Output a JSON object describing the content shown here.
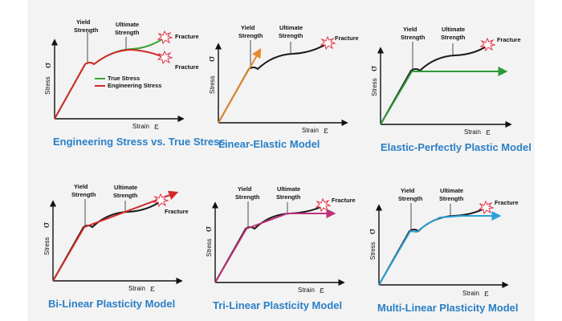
{
  "common": {
    "stress_label": "Stress",
    "sigma": "σ",
    "strain_label": "Strain",
    "epsilon": "ε",
    "yield_line1": "Yield",
    "yield_line2": "Strength",
    "ultimate_line1": "Ultimate",
    "ultimate_line2": "Strength",
    "fracture": "Fracture"
  },
  "colors": {
    "title": "#2a7fc6",
    "true_stress": "#3aa635",
    "engineering_stress": "#d12a2a",
    "curve_black": "#1a1a1a",
    "linear_elastic": "#e88a2a",
    "elastic_plastic": "#2e9a3a",
    "bilinear": "#d42a2a",
    "trilinear": "#c0307a",
    "multilinear": "#2aa0d8",
    "fracture_star": "#e23040"
  },
  "panels": [
    {
      "title": "Engineering Stress vs. True Stress",
      "legend": [
        {
          "label": "True Stress",
          "color": "#3aa635"
        },
        {
          "label": "Engineering Stress",
          "color": "#d12a2a"
        }
      ],
      "fracture_labels": [
        "Fracture",
        "Fracture"
      ]
    },
    {
      "title": "Linear-Elastic Model"
    },
    {
      "title": "Elastic-Perfectly Plastic Model"
    },
    {
      "title": "Bi-Linear Plasticity Model"
    },
    {
      "title": "Tri-Linear Plasticity Model"
    },
    {
      "title": "Multi-Linear Plasticity Model"
    }
  ]
}
